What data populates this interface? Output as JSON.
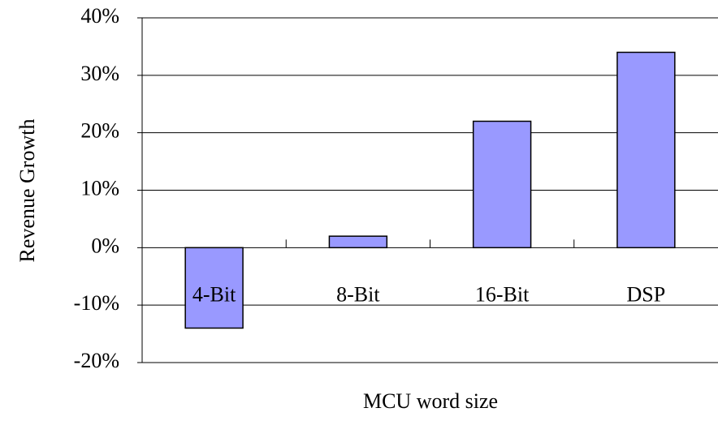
{
  "chart_data": {
    "type": "bar",
    "x_label": "MCU word size",
    "y_label": "Revenue Growth",
    "categories": [
      "4-Bit",
      "8-Bit",
      "16-Bit",
      "DSP"
    ],
    "values": [
      -14,
      2,
      22,
      34
    ],
    "color": "#9999ff",
    "ylim": [
      -20,
      40
    ],
    "yticks": [
      {
        "value": -20,
        "label": "-20%"
      },
      {
        "value": -10,
        "label": "-10%"
      },
      {
        "value": 0,
        "label": "0%"
      },
      {
        "value": 10,
        "label": "10%"
      },
      {
        "value": 20,
        "label": "20%"
      },
      {
        "value": 30,
        "label": "30%"
      },
      {
        "value": 40,
        "label": "40%"
      }
    ],
    "grid": true
  }
}
